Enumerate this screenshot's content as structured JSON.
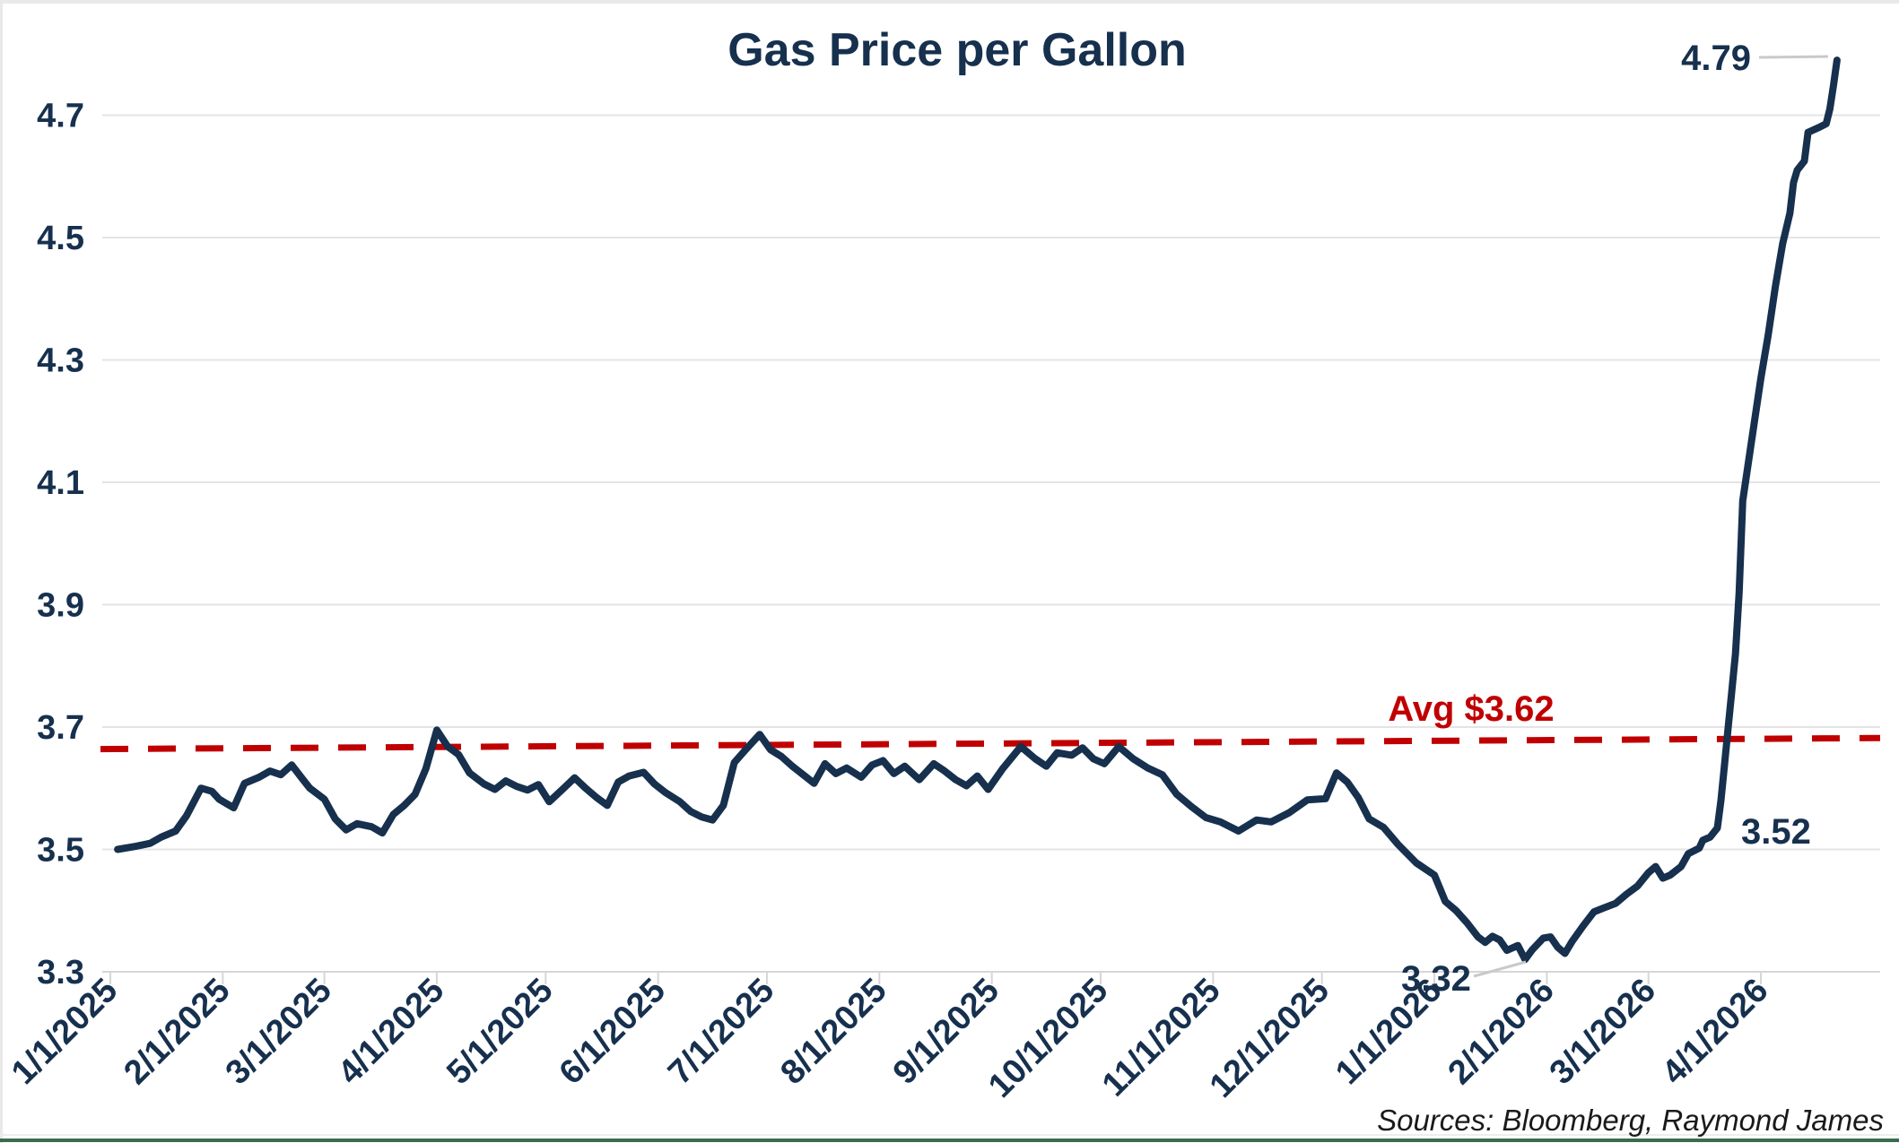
{
  "title": "Gas Price per Gallon",
  "source_note": "Sources: Bloomberg, Raymond James",
  "colors": {
    "series_line": "#16304e",
    "title_text": "#16304e",
    "tick_text": "#16304e",
    "annotation_text": "#16304e",
    "average_line": "#c00000",
    "average_label": "#c00000",
    "gridline": "#e4e4e4",
    "axis_line": "#d6d6d6",
    "leader_line": "#c9c9c9",
    "source_text": "#1a1a1a",
    "page_border_gray": "#e9e9e9",
    "page_border_green": "#3c6b4f",
    "background": "#ffffff"
  },
  "chart_data": {
    "type": "line",
    "title": "Gas Price per Gallon",
    "xlabel": "",
    "ylabel": "",
    "grid": "horizontal",
    "legend": "none",
    "ylim": [
      3.3,
      4.87
    ],
    "y_ticks": [
      3.3,
      3.5,
      3.7,
      3.9,
      4.1,
      4.3,
      4.5,
      4.7
    ],
    "x_ticks": [
      "1/1/2025",
      "2/1/2025",
      "3/1/2025",
      "4/1/2025",
      "5/1/2025",
      "6/1/2025",
      "7/1/2025",
      "8/1/2025",
      "9/1/2025",
      "10/1/2025",
      "11/1/2025",
      "12/1/2025",
      "1/1/2026",
      "2/1/2026",
      "3/1/2026",
      "4/1/2026"
    ],
    "average_line": {
      "label": "Avg $3.62",
      "value": 3.62,
      "style": "dashed",
      "display_value_left": 3.664,
      "display_value_right": 3.682
    },
    "annotations": [
      {
        "text": "4.79",
        "meaning": "peak value at end of series"
      },
      {
        "text": "3.52",
        "meaning": "value just before final surge"
      },
      {
        "text": "3.32",
        "meaning": "minimum value, late January 2026"
      }
    ],
    "series": [
      {
        "name": "Gas price per gallon (USD)",
        "points": [
          [
            "1/3/25",
            3.5
          ],
          [
            "1/8/25",
            3.505
          ],
          [
            "1/12/25",
            3.51
          ],
          [
            "1/15/25",
            3.52
          ],
          [
            "1/19/25",
            3.53
          ],
          [
            "1/22/25",
            3.555
          ],
          [
            "1/26/25",
            3.6
          ],
          [
            "1/29/25",
            3.595
          ],
          [
            "1/31/25",
            3.582
          ],
          [
            "2/4/25",
            3.568
          ],
          [
            "2/7/25",
            3.608
          ],
          [
            "2/11/25",
            3.618
          ],
          [
            "2/14/25",
            3.628
          ],
          [
            "2/17/25",
            3.622
          ],
          [
            "2/20/25",
            3.638
          ],
          [
            "2/23/25",
            3.615
          ],
          [
            "2/25/25",
            3.6
          ],
          [
            "3/1/25",
            3.582
          ],
          [
            "3/4/25",
            3.55
          ],
          [
            "3/7/25",
            3.532
          ],
          [
            "3/10/25",
            3.542
          ],
          [
            "3/14/25",
            3.537
          ],
          [
            "3/17/25",
            3.527
          ],
          [
            "3/20/25",
            3.557
          ],
          [
            "3/23/25",
            3.572
          ],
          [
            "3/26/25",
            3.59
          ],
          [
            "3/29/25",
            3.632
          ],
          [
            "4/1/25",
            3.695
          ],
          [
            "4/4/25",
            3.668
          ],
          [
            "4/7/25",
            3.655
          ],
          [
            "4/10/25",
            3.625
          ],
          [
            "4/14/25",
            3.607
          ],
          [
            "4/17/25",
            3.598
          ],
          [
            "4/20/25",
            3.612
          ],
          [
            "4/23/25",
            3.603
          ],
          [
            "4/26/25",
            3.597
          ],
          [
            "4/29/25",
            3.606
          ],
          [
            "5/2/25",
            3.578
          ],
          [
            "5/6/25",
            3.6
          ],
          [
            "5/9/25",
            3.617
          ],
          [
            "5/12/25",
            3.6
          ],
          [
            "5/15/25",
            3.585
          ],
          [
            "5/18/25",
            3.572
          ],
          [
            "5/21/25",
            3.61
          ],
          [
            "5/24/25",
            3.62
          ],
          [
            "5/28/25",
            3.626
          ],
          [
            "5/31/25",
            3.607
          ],
          [
            "6/3/25",
            3.593
          ],
          [
            "6/7/25",
            3.578
          ],
          [
            "6/10/25",
            3.562
          ],
          [
            "6/13/25",
            3.553
          ],
          [
            "6/16/25",
            3.548
          ],
          [
            "6/19/25",
            3.572
          ],
          [
            "6/22/25",
            3.642
          ],
          [
            "6/25/25",
            3.662
          ],
          [
            "6/29/25",
            3.688
          ],
          [
            "7/2/25",
            3.663
          ],
          [
            "7/5/25",
            3.652
          ],
          [
            "7/8/25",
            3.636
          ],
          [
            "7/11/25",
            3.622
          ],
          [
            "7/14/25",
            3.608
          ],
          [
            "7/17/25",
            3.64
          ],
          [
            "7/20/25",
            3.624
          ],
          [
            "7/23/25",
            3.633
          ],
          [
            "7/27/25",
            3.618
          ],
          [
            "7/30/25",
            3.638
          ],
          [
            "8/2/25",
            3.645
          ],
          [
            "8/5/25",
            3.624
          ],
          [
            "8/8/25",
            3.636
          ],
          [
            "8/12/25",
            3.614
          ],
          [
            "8/16/25",
            3.64
          ],
          [
            "8/19/25",
            3.628
          ],
          [
            "8/22/25",
            3.614
          ],
          [
            "8/25/25",
            3.604
          ],
          [
            "8/28/25",
            3.62
          ],
          [
            "8/31/25",
            3.598
          ],
          [
            "9/4/25",
            3.632
          ],
          [
            "9/9/25",
            3.668
          ],
          [
            "9/13/25",
            3.648
          ],
          [
            "9/16/25",
            3.636
          ],
          [
            "9/19/25",
            3.658
          ],
          [
            "9/23/25",
            3.654
          ],
          [
            "9/26/25",
            3.666
          ],
          [
            "9/29/25",
            3.648
          ],
          [
            "10/2/25",
            3.64
          ],
          [
            "10/6/25",
            3.668
          ],
          [
            "10/10/25",
            3.648
          ],
          [
            "10/14/25",
            3.633
          ],
          [
            "10/18/25",
            3.622
          ],
          [
            "10/22/25",
            3.59
          ],
          [
            "10/26/25",
            3.57
          ],
          [
            "10/30/25",
            3.552
          ],
          [
            "11/3/25",
            3.545
          ],
          [
            "11/8/25",
            3.53
          ],
          [
            "11/13/25",
            3.548
          ],
          [
            "11/17/25",
            3.545
          ],
          [
            "11/22/25",
            3.56
          ],
          [
            "11/27/25",
            3.581
          ],
          [
            "12/2/25",
            3.583
          ],
          [
            "12/5/25",
            3.625
          ],
          [
            "12/8/25",
            3.61
          ],
          [
            "12/11/25",
            3.585
          ],
          [
            "12/14/25",
            3.55
          ],
          [
            "12/18/25",
            3.536
          ],
          [
            "12/22/25",
            3.508
          ],
          [
            "12/27/25",
            3.478
          ],
          [
            "1/1/26",
            3.458
          ],
          [
            "1/4/26",
            3.415
          ],
          [
            "1/7/26",
            3.4
          ],
          [
            "1/10/26",
            3.38
          ],
          [
            "1/13/26",
            3.357
          ],
          [
            "1/15/26",
            3.348
          ],
          [
            "1/17/26",
            3.358
          ],
          [
            "1/19/26",
            3.352
          ],
          [
            "1/21/26",
            3.335
          ],
          [
            "1/24/26",
            3.343
          ],
          [
            "1/26/26",
            3.32
          ],
          [
            "1/28/26",
            3.336
          ],
          [
            "1/31/26",
            3.355
          ],
          [
            "2/2/26",
            3.357
          ],
          [
            "2/4/26",
            3.34
          ],
          [
            "2/6/26",
            3.33
          ],
          [
            "2/8/26",
            3.35
          ],
          [
            "2/11/26",
            3.375
          ],
          [
            "2/14/26",
            3.398
          ],
          [
            "2/17/26",
            3.405
          ],
          [
            "2/20/26",
            3.412
          ],
          [
            "2/23/26",
            3.427
          ],
          [
            "2/26/26",
            3.44
          ],
          [
            "3/1/26",
            3.462
          ],
          [
            "3/3/26",
            3.472
          ],
          [
            "3/5/26",
            3.453
          ],
          [
            "3/7/26",
            3.458
          ],
          [
            "3/10/26",
            3.472
          ],
          [
            "3/12/26",
            3.493
          ],
          [
            "3/15/26",
            3.502
          ],
          [
            "3/16/26",
            3.515
          ],
          [
            "3/18/26",
            3.52
          ],
          [
            "3/20/26",
            3.535
          ],
          [
            "3/21/26",
            3.58
          ],
          [
            "3/22/26",
            3.64
          ],
          [
            "3/23/26",
            3.7
          ],
          [
            "3/24/26",
            3.76
          ],
          [
            "3/25/26",
            3.82
          ],
          [
            "3/26/26",
            3.92
          ],
          [
            "3/27/26",
            4.07
          ],
          [
            "3/30/26",
            4.19
          ],
          [
            "4/1/26",
            4.27
          ],
          [
            "4/3/26",
            4.34
          ],
          [
            "4/5/26",
            4.42
          ],
          [
            "4/7/26",
            4.49
          ],
          [
            "4/9/26",
            4.54
          ],
          [
            "4/10/26",
            4.59
          ],
          [
            "4/11/26",
            4.61
          ],
          [
            "4/13/26",
            4.625
          ],
          [
            "4/14/26",
            4.672
          ],
          [
            "4/17/26",
            4.68
          ],
          [
            "4/19/26",
            4.686
          ],
          [
            "4/20/26",
            4.71
          ],
          [
            "4/21/26",
            4.748
          ],
          [
            "4/22/26",
            4.79
          ]
        ]
      }
    ]
  }
}
